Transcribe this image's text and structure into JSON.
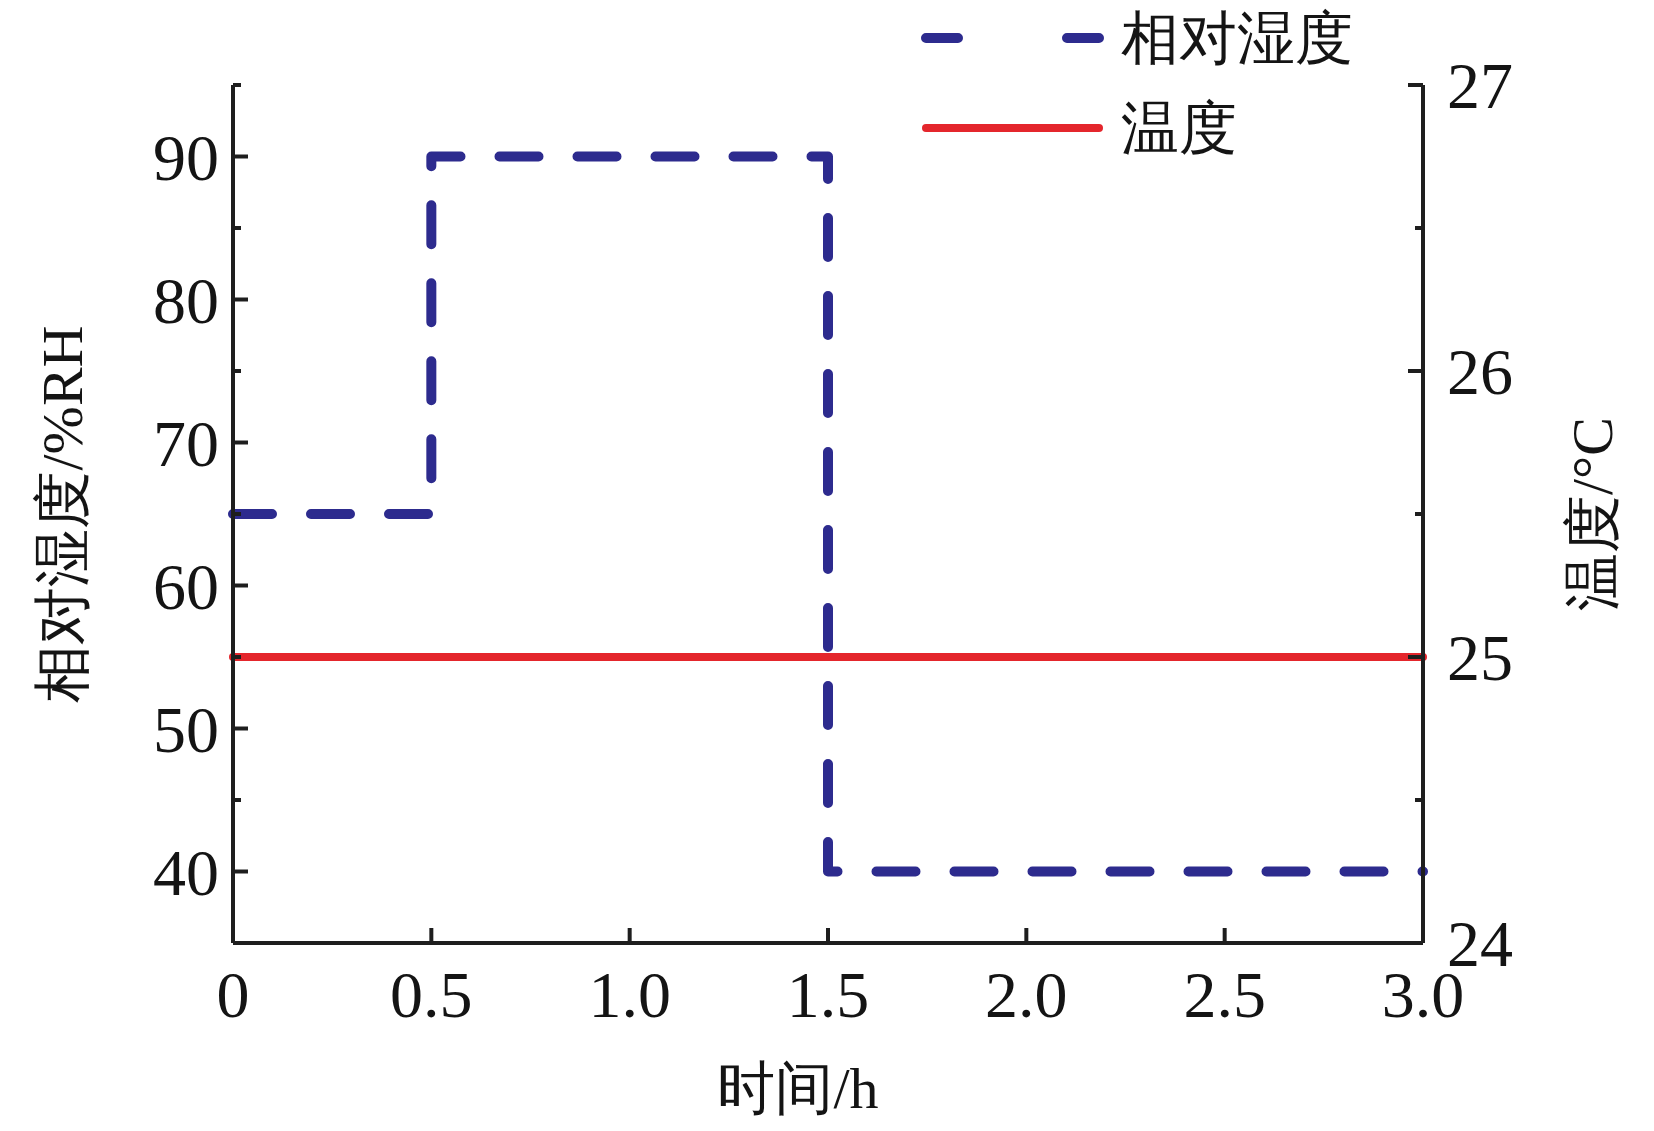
{
  "chart_data": {
    "type": "line",
    "xlabel": "时间/h",
    "ylabel": "相对湿度/%RH",
    "y2label": "温度/°C",
    "series": [
      {
        "name": "相对湿度",
        "type": "step",
        "color": "#2d2b8e",
        "line_style": "dashed",
        "x": [
          0,
          0.5,
          1.5,
          3
        ],
        "values": [
          65,
          90,
          40,
          40
        ]
      },
      {
        "name": "温度",
        "color": "#e4262c",
        "line_style": "solid",
        "axis": "y2",
        "x": [
          0,
          3
        ],
        "values": [
          25,
          25
        ]
      }
    ],
    "xlim": [
      0,
      3
    ],
    "xticks": [
      0,
      0.5,
      {
        "value": 1,
        "label": "1.0"
      },
      1.5,
      {
        "value": 2,
        "label": "2.0"
      },
      2.5,
      {
        "value": 3,
        "label": "3.0"
      }
    ],
    "ylim": [
      35,
      95
    ],
    "yticks": [
      40,
      {
        "value": 45,
        "label": null
      },
      50,
      {
        "value": 55,
        "label": null
      },
      60,
      {
        "value": 65,
        "label": null
      },
      70,
      {
        "value": 75,
        "label": null
      },
      80,
      {
        "value": 85,
        "label": null
      },
      90,
      {
        "value": 95,
        "label": null
      }
    ],
    "y2lim": [
      24,
      27
    ],
    "y2ticks": [
      24,
      {
        "value": 24.5,
        "label": null
      },
      25,
      {
        "value": 25.5,
        "label": null
      },
      26,
      {
        "value": 26.5,
        "label": null
      },
      27
    ],
    "legend": "top right"
  }
}
